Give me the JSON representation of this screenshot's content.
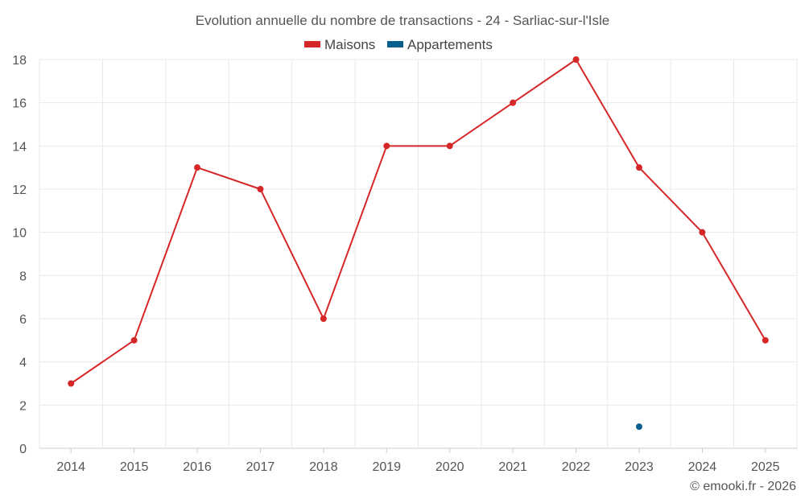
{
  "chart_data": {
    "type": "line",
    "title": "Evolution annuelle du nombre de transactions - 24 - Sarliac-sur-l'Isle",
    "categories": [
      "2014",
      "2015",
      "2016",
      "2017",
      "2018",
      "2019",
      "2020",
      "2021",
      "2022",
      "2023",
      "2024",
      "2025"
    ],
    "series": [
      {
        "name": "Maisons",
        "color": "#d62728",
        "values": [
          3,
          5,
          13,
          12,
          6,
          14,
          14,
          16,
          18,
          13,
          10,
          5
        ]
      },
      {
        "name": "Appartements",
        "color": "#0a5e8c",
        "values": [
          null,
          null,
          null,
          null,
          null,
          null,
          null,
          null,
          null,
          1,
          null,
          null
        ]
      }
    ],
    "ylim": [
      0,
      18
    ],
    "yticks": [
      0,
      2,
      4,
      6,
      8,
      10,
      12,
      14,
      16,
      18
    ],
    "grid": true,
    "legend": "top-center",
    "xlabel": "",
    "ylabel": ""
  },
  "credit": "© emooki.fr - 2026"
}
